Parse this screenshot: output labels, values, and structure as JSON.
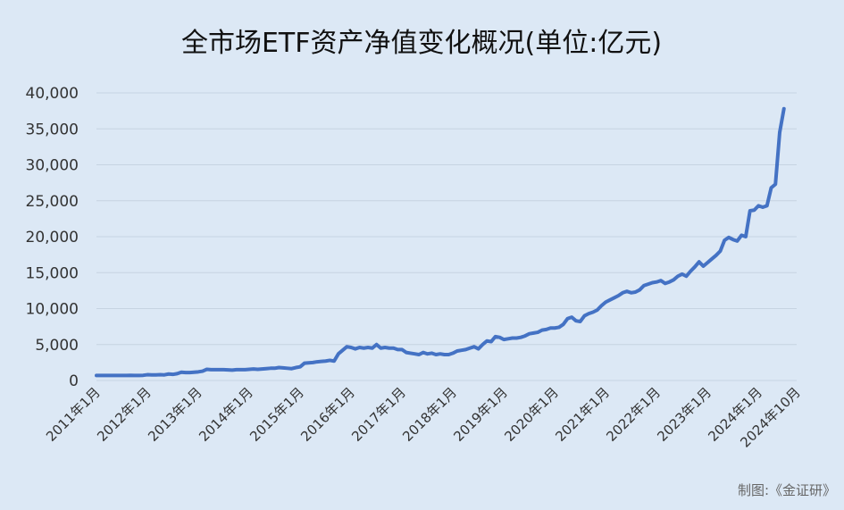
{
  "chart_data": {
    "type": "line",
    "title": "全市场ETF资产净值变化概况(单位:亿元)",
    "credit": "制图:《金证研》",
    "ylim": [
      0,
      40000
    ],
    "yticks": [
      0,
      5000,
      10000,
      15000,
      20000,
      25000,
      30000,
      35000,
      40000
    ],
    "ytick_labels": [
      "0",
      "5,000",
      "10,000",
      "15,000",
      "20,000",
      "25,000",
      "30,000",
      "35,000",
      "40,000"
    ],
    "xtick_labels": [
      "2011年1月",
      "2012年1月",
      "2013年1月",
      "2014年1月",
      "2015年1月",
      "2016年1月",
      "2017年1月",
      "2018年1月",
      "2019年1月",
      "2020年1月",
      "2021年1月",
      "2022年1月",
      "2023年1月",
      "2024年1月",
      "2024年10月"
    ],
    "xtick_months": [
      0,
      12,
      24,
      36,
      48,
      60,
      72,
      84,
      96,
      108,
      120,
      132,
      144,
      156,
      165
    ],
    "grid": true,
    "legend": "none",
    "line_color": "#4472c4",
    "series": [
      {
        "x_start": "2011年1月",
        "values": [
          700,
          700,
          700,
          700,
          700,
          700,
          700,
          700,
          720,
          700,
          700,
          720,
          800,
          780,
          780,
          800,
          780,
          900,
          850,
          950,
          1150,
          1100,
          1100,
          1150,
          1200,
          1300,
          1550,
          1500,
          1500,
          1500,
          1500,
          1480,
          1450,
          1500,
          1500,
          1500,
          1550,
          1600,
          1550,
          1600,
          1650,
          1700,
          1700,
          1800,
          1750,
          1700,
          1650,
          1800,
          1900,
          2400,
          2450,
          2500,
          2600,
          2650,
          2700,
          2800,
          2700,
          3700,
          4200,
          4700,
          4600,
          4400,
          4600,
          4500,
          4600,
          4500,
          5000,
          4500,
          4600,
          4500,
          4500,
          4300,
          4300,
          3900,
          3800,
          3700,
          3600,
          3900,
          3700,
          3800,
          3600,
          3700,
          3600,
          3600,
          3800,
          4100,
          4200,
          4300,
          4500,
          4700,
          4400,
          5000,
          5500,
          5400,
          6100,
          6000,
          5700,
          5800,
          5900,
          5900,
          6000,
          6200,
          6500,
          6600,
          6700,
          7000,
          7100,
          7300,
          7300,
          7400,
          7800,
          8600,
          8800,
          8300,
          8200,
          9000,
          9300,
          9500,
          9800,
          10400,
          10900,
          11200,
          11500,
          11800,
          12200,
          12400,
          12200,
          12300,
          12600,
          13200,
          13400,
          13600,
          13700,
          13900,
          13500,
          13700,
          14000,
          14500,
          14800,
          14500,
          15200,
          15800,
          16500,
          15900,
          16400,
          16900,
          17400,
          18000,
          19500,
          19900,
          19600,
          19400,
          20200,
          20000,
          23600,
          23700,
          24300,
          24100,
          24300,
          26800,
          27300,
          34500,
          37800
        ]
      }
    ]
  }
}
